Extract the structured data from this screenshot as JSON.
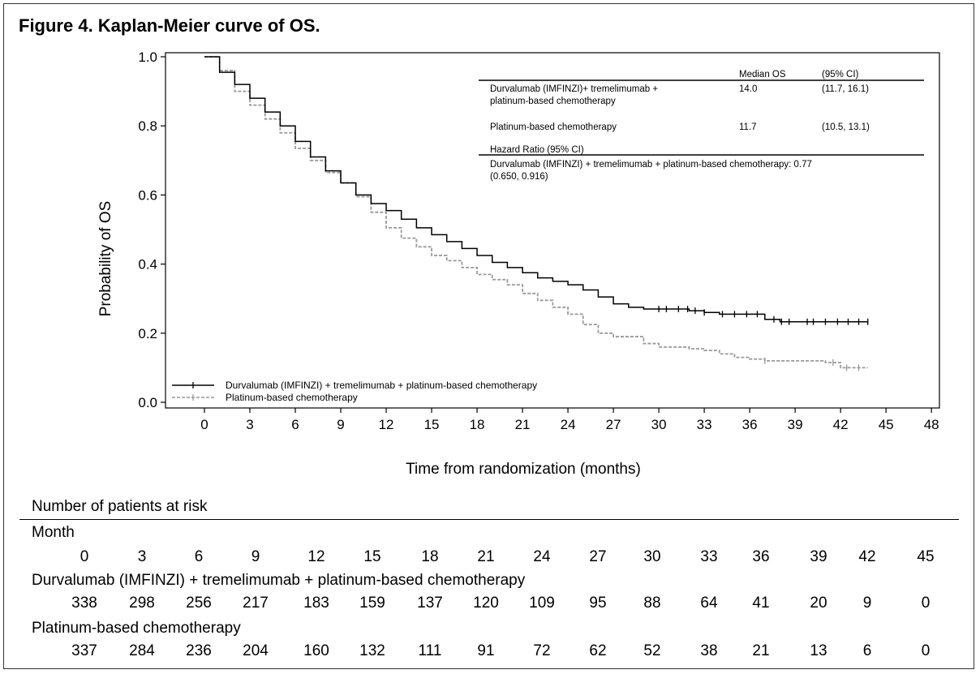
{
  "figure_title": "Figure 4. Kaplan-Meier curve of OS.",
  "chart_data": {
    "type": "line",
    "ylabel": "Probability of OS",
    "xlabel": "Time from randomization (months)",
    "xlim": [
      -4.5,
      48
    ],
    "ylim": [
      0,
      1.0
    ],
    "x_ticks": [
      0,
      3,
      6,
      9,
      12,
      15,
      18,
      21,
      24,
      27,
      30,
      33,
      36,
      39,
      42,
      45,
      48
    ],
    "x_tick_labels": [
      "0",
      "3",
      "6",
      "9",
      "12",
      "15",
      "18",
      "21",
      "24",
      "27",
      "30",
      "33",
      "36",
      "39",
      "42",
      "45",
      "48"
    ],
    "y_ticks": [
      0,
      0.2,
      0.4,
      0.6,
      0.8,
      1.0
    ],
    "y_tick_labels": [
      "0.0",
      "0.2",
      "0.4",
      "0.6",
      "0.8",
      "1.0"
    ],
    "grid": false,
    "legend_position": "bottom-left",
    "series": [
      {
        "name": "Durvalumab (IMFINZI) + tremelimumab + platinum-based chemotherapy",
        "color": "#000000",
        "dashed": false,
        "x": [
          0,
          1,
          2,
          3,
          4,
          5,
          6,
          7,
          8,
          9,
          10,
          11,
          12,
          13,
          14,
          15,
          16,
          17,
          18,
          19,
          20,
          21,
          22,
          23,
          24,
          25,
          26,
          27,
          28,
          29,
          30,
          31,
          32,
          33,
          34,
          35,
          36,
          37,
          38,
          39,
          40,
          41,
          42,
          43,
          43.8
        ],
        "y": [
          1.0,
          0.955,
          0.92,
          0.88,
          0.84,
          0.8,
          0.755,
          0.71,
          0.67,
          0.635,
          0.6,
          0.575,
          0.555,
          0.53,
          0.505,
          0.485,
          0.465,
          0.445,
          0.425,
          0.405,
          0.39,
          0.375,
          0.36,
          0.35,
          0.34,
          0.325,
          0.305,
          0.285,
          0.275,
          0.27,
          0.27,
          0.27,
          0.265,
          0.26,
          0.255,
          0.255,
          0.255,
          0.24,
          0.233,
          0.233,
          0.233,
          0.233,
          0.233,
          0.233,
          0.233
        ],
        "censor_x": [
          30.0,
          30.5,
          31.3,
          31.9,
          32.4,
          33.0,
          34.2,
          35.0,
          35.8,
          36.5,
          37.6,
          38.1,
          38.6,
          39.8,
          40.2,
          41.0,
          41.8,
          42.5,
          43.2,
          43.8
        ]
      },
      {
        "name": "Platinum-based chemotherapy",
        "color": "#999999",
        "dashed": true,
        "x": [
          0,
          1,
          2,
          3,
          4,
          5,
          6,
          7,
          8,
          9,
          10,
          11,
          12,
          13,
          14,
          15,
          16,
          17,
          18,
          19,
          20,
          21,
          22,
          23,
          24,
          25,
          26,
          27,
          28,
          29,
          30,
          31,
          32,
          33,
          34,
          35,
          36,
          37,
          38,
          39,
          40,
          41,
          42,
          43,
          43.8
        ],
        "y": [
          1.0,
          0.96,
          0.9,
          0.86,
          0.82,
          0.78,
          0.735,
          0.7,
          0.665,
          0.635,
          0.595,
          0.55,
          0.505,
          0.475,
          0.45,
          0.425,
          0.41,
          0.39,
          0.37,
          0.355,
          0.34,
          0.315,
          0.295,
          0.275,
          0.255,
          0.225,
          0.2,
          0.19,
          0.19,
          0.17,
          0.16,
          0.16,
          0.155,
          0.15,
          0.14,
          0.13,
          0.125,
          0.12,
          0.12,
          0.12,
          0.12,
          0.115,
          0.1,
          0.1,
          0.1
        ],
        "censor_x": [
          37.0,
          41.5,
          42.4,
          43.2
        ]
      }
    ],
    "annotation_table": {
      "headers": [
        "Median OS",
        "(95% CI)"
      ],
      "rows": [
        {
          "label_lines": [
            "Durvalumab (IMFINZI)+ tremelimumab +",
            "platinum-based chemotherapy"
          ],
          "median": "14.0",
          "ci": "(11.7, 16.1)"
        },
        {
          "label_lines": [
            "Platinum-based chemotherapy"
          ],
          "median": "11.7",
          "ci": "(10.5, 13.1)"
        }
      ],
      "hr_header": "Hazard Ratio (95% CI)",
      "hr_lines": [
        "Durvalumab (IMFINZI) + tremelimumab + platinum-based chemotherapy: 0.77",
        "(0.650, 0.916)"
      ]
    }
  },
  "risk_table": {
    "title": "Number of patients at risk",
    "month_label": "Month",
    "months": [
      "0",
      "3",
      "6",
      "9",
      "12",
      "15",
      "18",
      "21",
      "24",
      "27",
      "30",
      "33",
      "36",
      "39",
      "42",
      "45"
    ],
    "rows": [
      {
        "label": "Durvalumab (IMFINZI) + tremelimumab + platinum-based chemotherapy",
        "values": [
          "338",
          "298",
          "256",
          "217",
          "183",
          "159",
          "137",
          "120",
          "109",
          "95",
          "88",
          "64",
          "41",
          "20",
          "9",
          "0"
        ]
      },
      {
        "label": "Platinum-based chemotherapy",
        "values": [
          "337",
          "284",
          "236",
          "204",
          "160",
          "132",
          "111",
          "91",
          "72",
          "62",
          "52",
          "38",
          "21",
          "13",
          "6",
          "0"
        ]
      }
    ]
  }
}
